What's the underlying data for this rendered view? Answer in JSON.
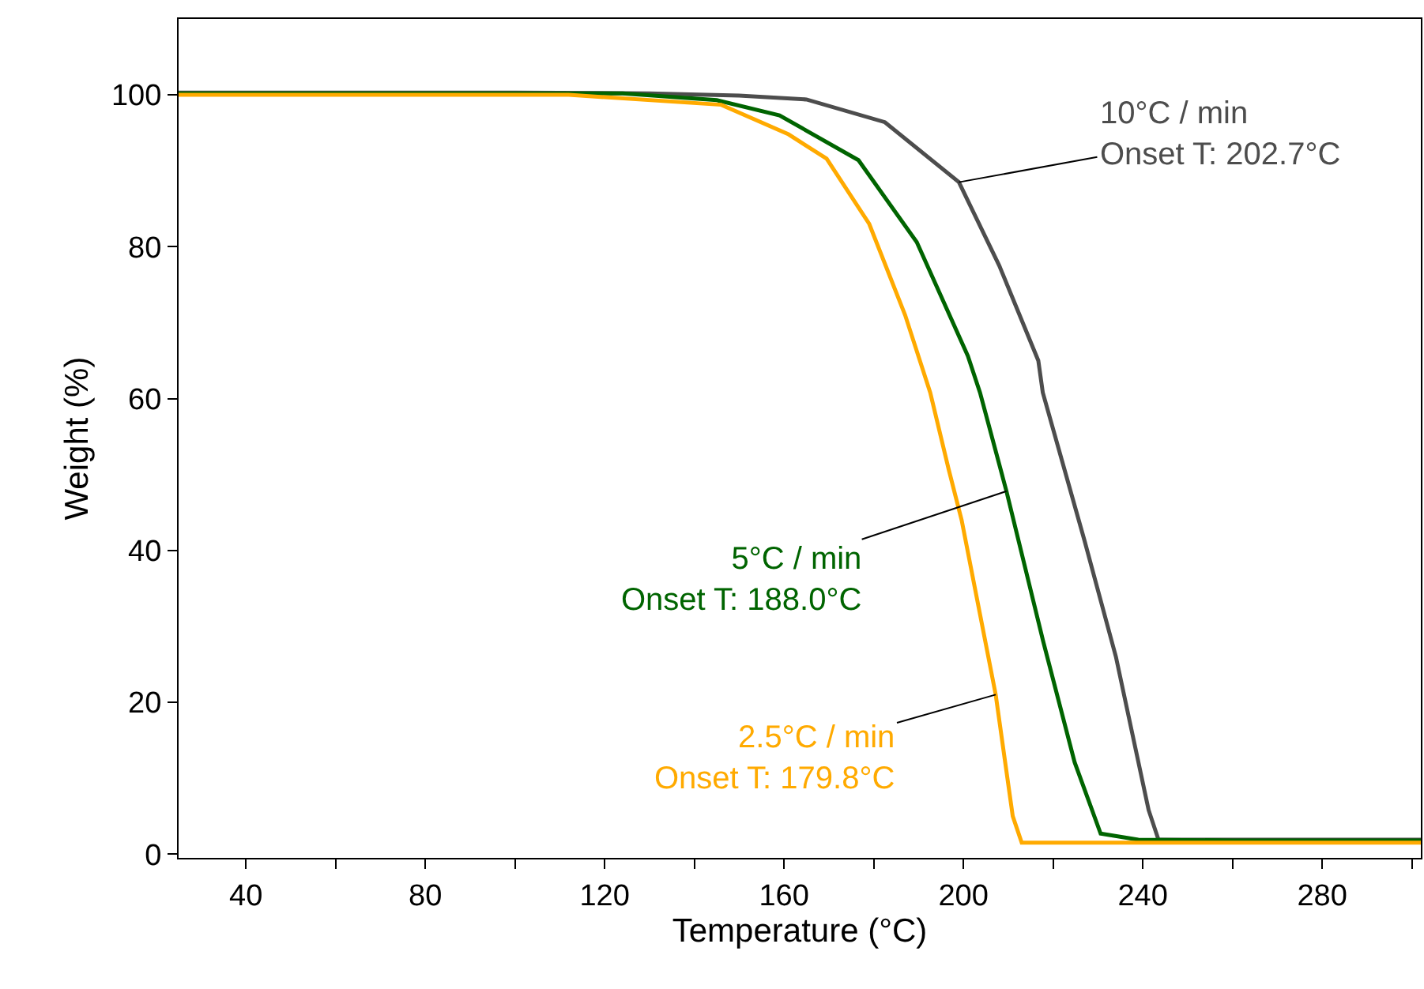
{
  "chart_data": {
    "type": "line",
    "xlabel": "Temperature (°C)",
    "ylabel": "Weight (%)",
    "xlim": [
      25,
      302
    ],
    "ylim": [
      -0.5,
      110
    ],
    "xticks": [
      40,
      {
        "value": 60,
        "label": null
      },
      80,
      {
        "value": 100,
        "label": null
      },
      120,
      {
        "value": 140,
        "label": null
      },
      160,
      {
        "value": 180,
        "label": null
      },
      200,
      {
        "value": 220,
        "label": null
      },
      240,
      {
        "value": 260,
        "label": null
      },
      280,
      {
        "value": 300,
        "label": null
      }
    ],
    "yticks": [
      0,
      20,
      40,
      60,
      80,
      100
    ],
    "legend": false,
    "marker": "none",
    "line_style": "solid",
    "series": [
      {
        "color": "#4d4d4d",
        "x": [
          25,
          100,
          130,
          150,
          165,
          182.5,
          199,
          208,
          216.7,
          217.7,
          227,
          234,
          241.3,
          243.5,
          260,
          302
        ],
        "values": [
          100.3,
          100.3,
          100.2,
          99.9,
          99.4,
          96.4,
          88.5,
          77.5,
          65,
          60.8,
          41.3,
          26,
          5.8,
          1.9,
          1.9,
          1.9
        ]
      },
      {
        "color": "#006400",
        "x": [
          25,
          100,
          124,
          145,
          159,
          176.6,
          189.6,
          201,
          203.7,
          209.6,
          217.8,
          224.8,
          230.6,
          239,
          260,
          302
        ],
        "values": [
          100.2,
          100.2,
          100.2,
          99.3,
          97.3,
          91.4,
          80.6,
          65.6,
          60.8,
          47.8,
          28,
          12.1,
          2.7,
          1.9,
          1.8,
          1.8
        ]
      },
      {
        "color": "#ffaa00",
        "x": [
          25,
          100,
          112,
          146,
          161,
          169.5,
          179,
          187,
          192.6,
          196.7,
          199.6,
          207.2,
          211,
          213,
          240,
          302
        ],
        "values": [
          100,
          100,
          100,
          98.7,
          94.8,
          91.6,
          83,
          71,
          60.8,
          50.7,
          44,
          21,
          5,
          1.5,
          1.5,
          1.5
        ]
      }
    ],
    "annotations": [
      {
        "text": "10°C / min\nOnset T: 202.7°C",
        "x": 199,
        "y": 88.5
      },
      {
        "text": "5°C / min\nOnset T: 188.0°C",
        "x": 209.6,
        "y": 47.8
      },
      {
        "text": "2.5°C / min\nOnset T: 179.8°C",
        "x": 207.2,
        "y": 21
      }
    ]
  }
}
